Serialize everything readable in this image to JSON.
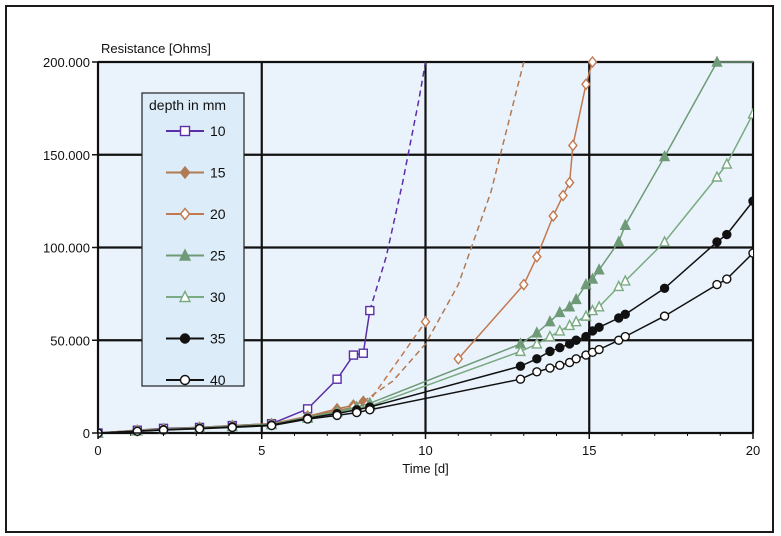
{
  "chart_data": {
    "type": "line",
    "title": "",
    "xlabel": "Time [d]",
    "ylabel": "Resistance [Ohms]",
    "xlim": [
      0,
      20
    ],
    "ylim": [
      0,
      200000
    ],
    "xticks": [
      0,
      5,
      10,
      15,
      20
    ],
    "xtick_labels": [
      "0",
      "5",
      "10",
      "15",
      "20"
    ],
    "yticks": [
      0,
      50000,
      100000,
      150000,
      200000
    ],
    "ytick_labels": [
      "0",
      "50.000",
      "100.000",
      "150.000",
      "200.000"
    ],
    "grid": true,
    "legend": {
      "title": "depth in mm",
      "placement": "top-left"
    },
    "series": [
      {
        "name": "10",
        "color": "#5a2ea6",
        "marker": "square-open",
        "x": [
          0,
          1.2,
          2.0,
          3.1,
          4.1,
          5.3,
          6.4,
          7.3,
          7.8,
          8.1,
          8.3
        ],
        "y": [
          0,
          1500,
          2500,
          3000,
          4000,
          5000,
          13000,
          29000,
          42000,
          43000,
          66000
        ],
        "extrapolation": {
          "x": [
            8.3,
            8.8,
            9.3,
            9.8,
            10.0
          ],
          "y": [
            66000,
            95000,
            135000,
            180000,
            200000
          ]
        }
      },
      {
        "name": "15",
        "color": "#b07a55",
        "marker": "diamond-filled",
        "x": [
          0,
          1.2,
          2.0,
          3.1,
          4.1,
          5.3,
          6.4,
          7.3,
          7.8,
          8.1
        ],
        "y": [
          0,
          1500,
          2200,
          3000,
          4000,
          5000,
          9000,
          13000,
          15000,
          17000
        ],
        "extrapolation": {
          "x": [
            8.1,
            9.0,
            10.0,
            11.0,
            12.0,
            13.0
          ],
          "y": [
            17000,
            28000,
            48000,
            80000,
            130000,
            200000
          ]
        }
      },
      {
        "name": "20",
        "color": "#c27850",
        "marker": "diamond-open",
        "x": [
          0,
          1.2,
          2.0,
          3.1,
          4.1,
          5.3,
          6.4,
          7.3,
          7.8,
          8.2,
          10.0,
          11.0,
          13.0,
          13.4,
          13.9,
          14.2,
          14.4,
          14.5,
          14.9,
          15.1
        ],
        "y": [
          0,
          1200,
          2000,
          2800,
          3800,
          4800,
          9000,
          12000,
          14000,
          15000,
          60000,
          40000,
          80000,
          95000,
          117000,
          128000,
          135000,
          155000,
          188000,
          200000
        ],
        "line_segments": [
          [
            0,
            9
          ],
          [
            11,
            19
          ]
        ]
      },
      {
        "name": "25",
        "color": "#6f9a78",
        "marker": "triangle-filled",
        "x": [
          0,
          1.2,
          2.0,
          3.1,
          4.1,
          5.3,
          6.4,
          7.3,
          7.9,
          8.3,
          12.9,
          13.4,
          13.8,
          14.1,
          14.4,
          14.6,
          14.9,
          15.1,
          15.3,
          15.9,
          16.1,
          17.3,
          18.9
        ],
        "y": [
          0,
          1200,
          2000,
          2800,
          3700,
          4700,
          8500,
          11500,
          14000,
          16000,
          48000,
          54000,
          60000,
          65000,
          68000,
          72000,
          80000,
          83000,
          88000,
          103000,
          112000,
          149000,
          200000
        ],
        "extrapolation": {
          "x": [
            18.9,
            19.5,
            20.0
          ],
          "y": [
            200000,
            200000,
            200000
          ]
        }
      },
      {
        "name": "30",
        "color": "#7aaa82",
        "marker": "triangle-open",
        "x": [
          0,
          1.2,
          2.0,
          3.1,
          4.1,
          5.3,
          6.4,
          7.3,
          7.9,
          8.3,
          12.9,
          13.4,
          13.8,
          14.1,
          14.4,
          14.6,
          14.9,
          15.1,
          15.3,
          15.9,
          16.1,
          17.3,
          18.9,
          19.2,
          20.0
        ],
        "y": [
          0,
          1100,
          1900,
          2600,
          3500,
          4500,
          8000,
          11000,
          13000,
          14500,
          44000,
          48000,
          52000,
          55000,
          58000,
          60000,
          63000,
          66000,
          68000,
          79000,
          82000,
          103000,
          138000,
          145000,
          172000
        ]
      },
      {
        "name": "35",
        "color": "#111111",
        "marker": "circle-filled",
        "x": [
          0,
          1.2,
          2.0,
          3.1,
          4.1,
          5.3,
          6.4,
          7.3,
          7.9,
          8.3,
          12.9,
          13.4,
          13.8,
          14.1,
          14.4,
          14.6,
          14.9,
          15.1,
          15.3,
          15.9,
          16.1,
          17.3,
          18.9,
          19.2,
          20.0
        ],
        "y": [
          0,
          1000,
          1800,
          2500,
          3300,
          4300,
          8000,
          10500,
          12500,
          14000,
          36000,
          40000,
          44000,
          46000,
          48000,
          50000,
          52000,
          55000,
          57000,
          62000,
          64000,
          78000,
          103000,
          107000,
          125000
        ]
      },
      {
        "name": "40",
        "color": "#111111",
        "marker": "circle-open",
        "x": [
          0,
          1.2,
          2.0,
          3.1,
          4.1,
          5.3,
          6.4,
          7.3,
          7.9,
          8.3,
          12.9,
          13.4,
          13.8,
          14.1,
          14.4,
          14.6,
          14.9,
          15.1,
          15.3,
          15.9,
          16.1,
          17.3,
          18.9,
          19.2,
          20.0
        ],
        "y": [
          0,
          900,
          1600,
          2300,
          3000,
          4000,
          7500,
          9500,
          11000,
          12500,
          29000,
          33000,
          35000,
          36500,
          38000,
          40000,
          42000,
          43500,
          45000,
          50000,
          52000,
          63000,
          80000,
          83000,
          97000
        ]
      }
    ]
  }
}
